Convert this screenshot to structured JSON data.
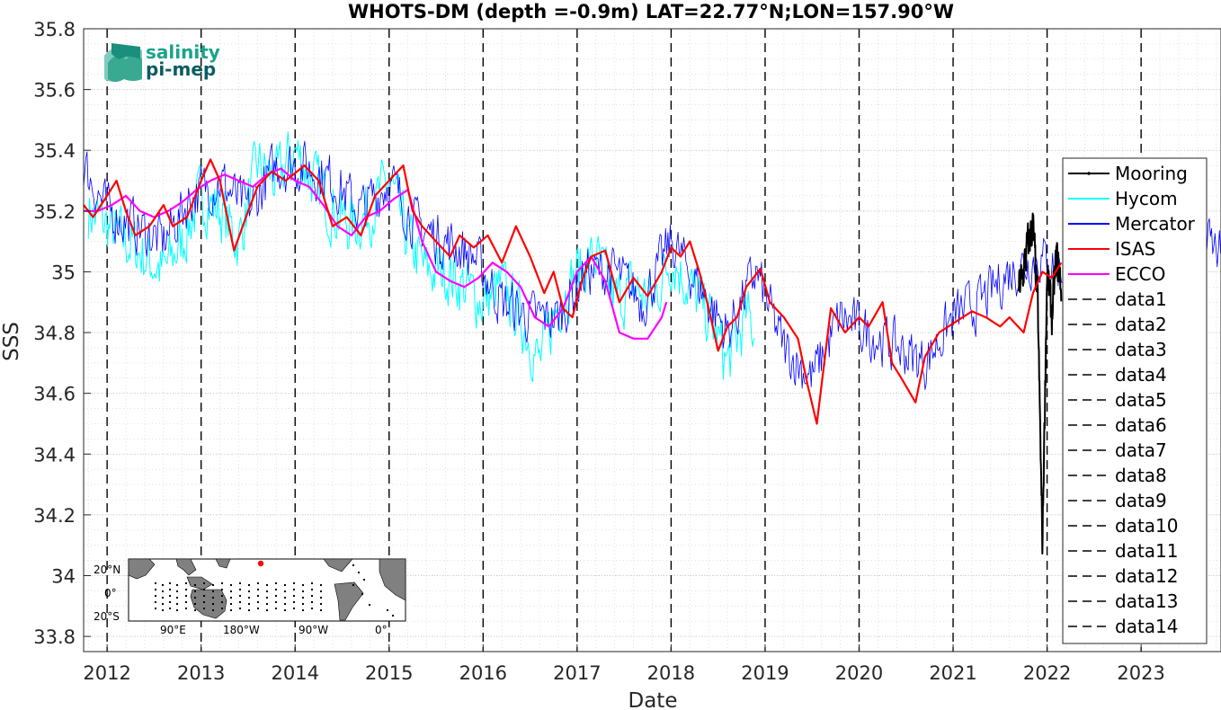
{
  "chart_data": {
    "type": "line",
    "title": "WHOTS-DM (depth =-0.9m) LAT=22.77°N;LON=157.90°W",
    "xlabel": "Date",
    "ylabel": "SSS",
    "xlim": [
      2011.75,
      2023.85
    ],
    "ylim": [
      33.75,
      35.8
    ],
    "x_ticks": [
      2012,
      2013,
      2014,
      2015,
      2016,
      2017,
      2018,
      2019,
      2020,
      2021,
      2022,
      2023
    ],
    "y_ticks": [
      33.8,
      34,
      34.2,
      34.4,
      34.6,
      34.8,
      35,
      35.2,
      35.4,
      35.6,
      35.8
    ],
    "y_tick_labels": [
      "33.8",
      "34",
      "34.2",
      "34.4",
      "34.6",
      "34.8",
      "35",
      "35.2",
      "35.4",
      "35.6",
      "35.8"
    ],
    "grid": true,
    "legend_position": "right",
    "vertical_lines": [
      2012,
      2013,
      2014,
      2015,
      2016,
      2017,
      2018,
      2019,
      2020,
      2021,
      2022,
      2023
    ],
    "series": [
      {
        "name": "Mooring",
        "color": "#000000",
        "style": "noisy",
        "x": [
          2021.7,
          2021.75,
          2021.8,
          2021.85,
          2021.9,
          2021.95,
          2022.0,
          2022.05,
          2022.1,
          2022.15
        ],
        "y": [
          34.95,
          35.0,
          35.1,
          35.15,
          34.9,
          34.1,
          35.0,
          34.85,
          35.05,
          34.95
        ]
      },
      {
        "name": "Hycom",
        "color": "#00ffff",
        "style": "noisy",
        "x": [
          2011.8,
          2012.0,
          2012.2,
          2012.4,
          2012.6,
          2012.8,
          2013.0,
          2013.2,
          2013.4,
          2013.6,
          2013.8,
          2014.0,
          2014.2,
          2014.4,
          2014.6,
          2014.8,
          2015.0,
          2015.2,
          2015.4,
          2015.6,
          2015.8,
          2016.0,
          2016.2,
          2016.4,
          2016.6,
          2016.8,
          2017.0,
          2017.2,
          2017.4,
          2017.6,
          2017.8,
          2018.0,
          2018.2,
          2018.4,
          2018.6,
          2018.8,
          2018.9
        ],
        "y": [
          35.2,
          35.15,
          35.1,
          35.05,
          35.0,
          35.1,
          35.25,
          35.2,
          35.1,
          35.35,
          35.3,
          35.4,
          35.3,
          35.2,
          35.15,
          35.2,
          35.3,
          35.1,
          35.0,
          35.0,
          34.95,
          34.9,
          34.95,
          34.85,
          34.7,
          34.9,
          35.0,
          35.05,
          34.9,
          34.95,
          34.9,
          35.05,
          34.95,
          34.85,
          34.7,
          34.85,
          34.8
        ]
      },
      {
        "name": "Mercator",
        "color": "#0000ff",
        "style": "noisy",
        "x": [
          2011.75,
          2012.0,
          2012.3,
          2012.6,
          2012.9,
          2013.2,
          2013.5,
          2013.8,
          2014.1,
          2014.4,
          2014.7,
          2015.0,
          2015.3,
          2015.6,
          2015.9,
          2016.2,
          2016.5,
          2016.8,
          2017.1,
          2017.4,
          2017.7,
          2018.0,
          2018.3,
          2018.6,
          2018.9,
          2019.2,
          2019.5,
          2019.8,
          2020.1,
          2020.4,
          2020.7,
          2021.0,
          2021.3,
          2021.6,
          2021.9,
          2022.2,
          2022.5,
          2022.8,
          2023.1,
          2023.4,
          2023.7,
          2023.85
        ],
        "y": [
          35.35,
          35.2,
          35.15,
          35.1,
          35.25,
          35.3,
          35.2,
          35.35,
          35.35,
          35.3,
          35.2,
          35.3,
          35.15,
          35.1,
          35.05,
          34.9,
          34.85,
          34.85,
          35.0,
          35.0,
          34.9,
          35.1,
          34.95,
          34.8,
          35.0,
          34.75,
          34.65,
          34.85,
          34.8,
          34.75,
          34.7,
          34.85,
          34.9,
          35.0,
          35.05,
          35.0,
          35.0,
          35.2,
          35.1,
          35.0,
          35.1,
          35.05
        ]
      },
      {
        "name": "ISAS",
        "color": "#ff0000",
        "style": "smooth",
        "x": [
          2011.75,
          2011.85,
          2012.0,
          2012.1,
          2012.2,
          2012.3,
          2012.45,
          2012.6,
          2012.7,
          2012.85,
          2013.0,
          2013.1,
          2013.2,
          2013.35,
          2013.5,
          2013.6,
          2013.75,
          2013.9,
          2014.1,
          2014.25,
          2014.4,
          2014.55,
          2014.7,
          2014.85,
          2015.0,
          2015.15,
          2015.25,
          2015.35,
          2015.5,
          2015.65,
          2015.75,
          2015.9,
          2016.05,
          2016.2,
          2016.35,
          2016.5,
          2016.65,
          2016.75,
          2016.85,
          2016.95,
          2017.05,
          2017.15,
          2017.3,
          2017.45,
          2017.6,
          2017.75,
          2017.9,
          2018.0,
          2018.1,
          2018.2,
          2018.3,
          2018.4,
          2018.5,
          2018.6,
          2018.7,
          2018.8,
          2018.95,
          2019.05,
          2019.2,
          2019.35,
          2019.45,
          2019.55,
          2019.7,
          2019.85,
          2020.0,
          2020.1,
          2020.25,
          2020.35,
          2020.45,
          2020.6,
          2020.7,
          2020.85,
          2021.0,
          2021.2,
          2021.35,
          2021.5,
          2021.6,
          2021.75,
          2021.85,
          2021.95,
          2022.05,
          2022.15
        ],
        "y": [
          35.22,
          35.18,
          35.25,
          35.3,
          35.2,
          35.12,
          35.15,
          35.22,
          35.15,
          35.18,
          35.3,
          35.37,
          35.3,
          35.07,
          35.2,
          35.28,
          35.33,
          35.3,
          35.35,
          35.3,
          35.15,
          35.18,
          35.12,
          35.25,
          35.3,
          35.35,
          35.2,
          35.15,
          35.1,
          35.05,
          35.12,
          35.08,
          35.12,
          35.03,
          35.15,
          35.05,
          34.93,
          35.0,
          34.88,
          34.85,
          34.97,
          35.05,
          35.07,
          34.9,
          34.98,
          34.92,
          35.0,
          35.08,
          35.05,
          35.1,
          35.0,
          34.88,
          34.74,
          34.82,
          34.85,
          34.95,
          35.01,
          34.9,
          34.85,
          34.78,
          34.63,
          34.5,
          34.88,
          34.8,
          34.85,
          34.82,
          34.9,
          34.7,
          34.65,
          34.57,
          34.72,
          34.8,
          34.83,
          34.87,
          34.85,
          34.82,
          34.85,
          34.8,
          34.93,
          35.0,
          34.98,
          35.03
        ]
      },
      {
        "name": "ECCO",
        "color": "#ff00ff",
        "style": "smooth",
        "x": [
          2011.75,
          2011.9,
          2012.05,
          2012.2,
          2012.35,
          2012.5,
          2012.65,
          2012.8,
          2012.95,
          2013.1,
          2013.25,
          2013.4,
          2013.55,
          2013.7,
          2013.85,
          2014.0,
          2014.15,
          2014.3,
          2014.45,
          2014.6,
          2014.75,
          2014.9,
          2015.05,
          2015.2,
          2015.35,
          2015.5,
          2015.65,
          2015.8,
          2015.95,
          2016.1,
          2016.25,
          2016.4,
          2016.55,
          2016.7,
          2016.85,
          2017.0,
          2017.15,
          2017.3,
          2017.45,
          2017.6,
          2017.75,
          2017.9,
          2017.95
        ],
        "y": [
          35.2,
          35.2,
          35.22,
          35.25,
          35.2,
          35.18,
          35.2,
          35.23,
          35.27,
          35.3,
          35.32,
          35.3,
          35.28,
          35.32,
          35.34,
          35.3,
          35.28,
          35.22,
          35.15,
          35.12,
          35.18,
          35.2,
          35.24,
          35.27,
          35.1,
          35.0,
          34.97,
          34.95,
          34.98,
          35.03,
          35.0,
          34.95,
          34.85,
          34.82,
          34.88,
          35.0,
          35.05,
          34.97,
          34.8,
          34.78,
          34.78,
          34.85,
          34.9
        ]
      }
    ],
    "legend_extra": [
      "data1",
      "data2",
      "data3",
      "data4",
      "data5",
      "data6",
      "data7",
      "data8",
      "data9",
      "data10",
      "data11",
      "data12",
      "data13",
      "data14"
    ]
  },
  "logo": {
    "line1": "salinity",
    "line2": "pi-mep"
  },
  "inset_map": {
    "lat_labels": [
      "20°N",
      "0°",
      "20°S"
    ],
    "lon_labels": [
      "90°E",
      "180°W",
      "90°W",
      "0°"
    ]
  }
}
